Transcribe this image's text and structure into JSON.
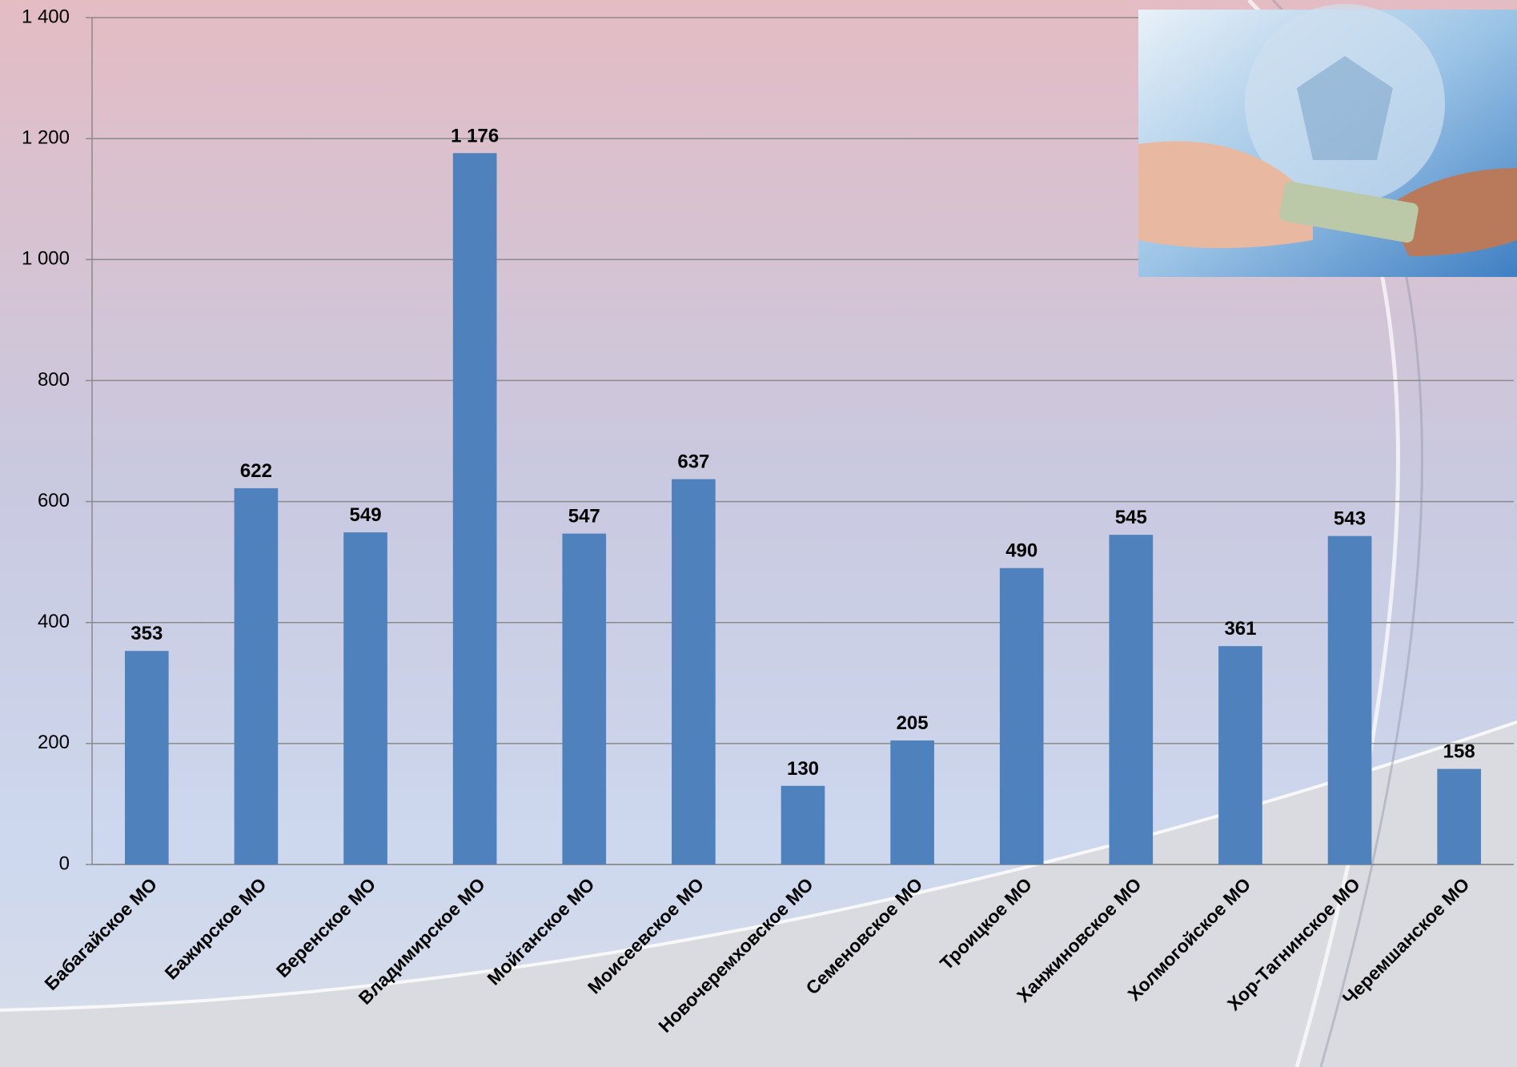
{
  "chart_data": {
    "type": "bar",
    "categories": [
      "Бабагайское МО",
      "Бажирское МО",
      "Веренское МО",
      "Владимирское МО",
      "Мойганское МО",
      "Моисеевское МО",
      "Новочеремховское МО",
      "Семеновское МО",
      "Троицкое МО",
      "Ханжиновское МО",
      "Холмогойское МО",
      "Хор-Тагнинское МО",
      "Черемшанское МО"
    ],
    "values": [
      353,
      622,
      549,
      1176,
      547,
      637,
      130,
      205,
      490,
      545,
      361,
      543,
      158
    ],
    "value_labels": [
      "353",
      "622",
      "549",
      "1 176",
      "547",
      "637",
      "130",
      "205",
      "490",
      "545",
      "361",
      "543",
      "158"
    ],
    "color": "#4f81bd",
    "ylim": [
      0,
      1400
    ],
    "yticks": [
      0,
      200,
      400,
      600,
      800,
      {
        "value": 1000,
        "label": "1 000"
      },
      {
        "value": 1200,
        "label": "1 200"
      },
      {
        "value": 1400,
        "label": "1 400"
      }
    ],
    "grid": true
  }
}
